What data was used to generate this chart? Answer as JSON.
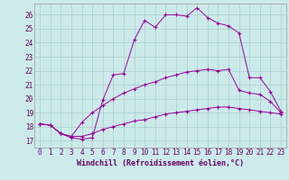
{
  "xlabel": "Windchill (Refroidissement éolien,°C)",
  "ylabel": "",
  "bg_color": "#cceaea",
  "line_color": "#990099",
  "grid_color": "#aacccc",
  "xlim": [
    -0.5,
    23.5
  ],
  "ylim": [
    16.5,
    26.8
  ],
  "yticks": [
    17,
    18,
    19,
    20,
    21,
    22,
    23,
    24,
    25,
    26
  ],
  "xticks": [
    0,
    1,
    2,
    3,
    4,
    5,
    6,
    7,
    8,
    9,
    10,
    11,
    12,
    13,
    14,
    15,
    16,
    17,
    18,
    19,
    20,
    21,
    22,
    23
  ],
  "line1_x": [
    0,
    1,
    2,
    3,
    4,
    5,
    6,
    7,
    8,
    9,
    10,
    11,
    12,
    13,
    14,
    15,
    16,
    17,
    18,
    19,
    20,
    21,
    22,
    23
  ],
  "line1_y": [
    18.2,
    18.1,
    17.5,
    17.2,
    17.1,
    17.2,
    19.9,
    21.7,
    21.8,
    24.2,
    25.6,
    25.1,
    26.0,
    26.0,
    25.9,
    26.5,
    25.8,
    25.4,
    25.2,
    24.7,
    21.5,
    21.5,
    20.5,
    19.1
  ],
  "line2_x": [
    0,
    1,
    2,
    3,
    4,
    5,
    6,
    7,
    8,
    9,
    10,
    11,
    12,
    13,
    14,
    15,
    16,
    17,
    18,
    19,
    20,
    21,
    22,
    23
  ],
  "line2_y": [
    18.2,
    18.1,
    17.5,
    17.3,
    18.3,
    19.0,
    19.5,
    20.0,
    20.4,
    20.7,
    21.0,
    21.2,
    21.5,
    21.7,
    21.9,
    22.0,
    22.1,
    22.0,
    22.1,
    20.6,
    20.4,
    20.3,
    19.8,
    19.0
  ],
  "line3_x": [
    0,
    1,
    2,
    3,
    4,
    5,
    6,
    7,
    8,
    9,
    10,
    11,
    12,
    13,
    14,
    15,
    16,
    17,
    18,
    19,
    20,
    21,
    22,
    23
  ],
  "line3_y": [
    18.2,
    18.1,
    17.5,
    17.3,
    17.3,
    17.5,
    17.8,
    18.0,
    18.2,
    18.4,
    18.5,
    18.7,
    18.9,
    19.0,
    19.1,
    19.2,
    19.3,
    19.4,
    19.4,
    19.3,
    19.2,
    19.1,
    19.0,
    18.9
  ],
  "tick_color": "#660066",
  "xlabel_fontsize": 6.0,
  "tick_fontsize": 5.5
}
